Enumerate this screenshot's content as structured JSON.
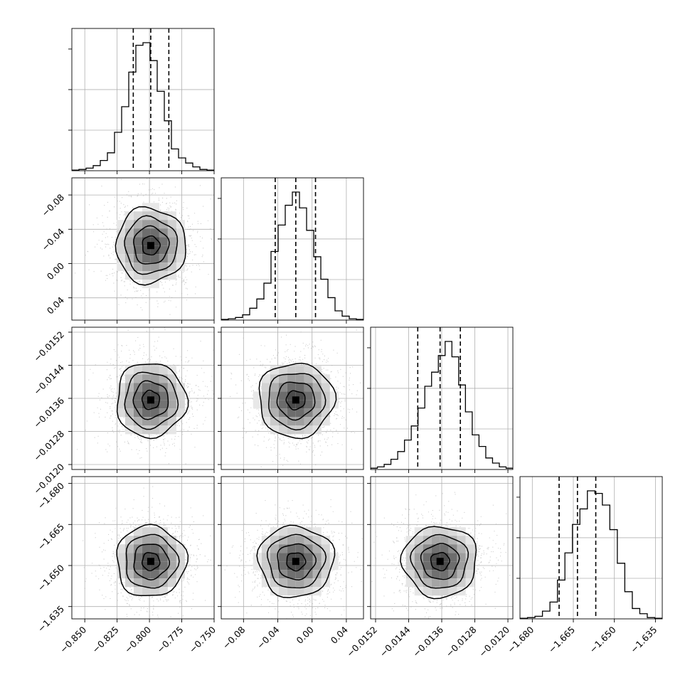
{
  "chart_data": {
    "type": "corner",
    "parameters": [
      {
        "range": [
          -0.86,
          -0.75
        ],
        "ticks": [
          -0.85,
          -0.825,
          -0.8,
          -0.775,
          -0.75
        ],
        "tick_labels": [
          "−0.850",
          "−0.825",
          "−0.800",
          "−0.775",
          "−0.750"
        ],
        "quantiles": [
          -0.8125,
          -0.799,
          -0.785
        ],
        "mean": -0.799,
        "sd": 0.0135,
        "hist": [
          0.5,
          1,
          2,
          4,
          8,
          14,
          30,
          50,
          77,
          98,
          100,
          86,
          62,
          39,
          17,
          10,
          6,
          3,
          1,
          0.5
        ]
      },
      {
        "range": [
          -0.106,
          0.06
        ],
        "ticks": [
          -0.08,
          -0.04,
          0.0,
          0.04
        ],
        "tick_labels": [
          "−0.08",
          "−0.04",
          "0.00",
          "0.04"
        ],
        "quantiles": [
          -0.043,
          -0.019,
          0.004
        ],
        "mean": -0.019,
        "sd": 0.022,
        "hist": [
          0.5,
          1,
          2,
          4,
          9,
          16,
          28,
          52,
          72,
          87,
          97,
          85,
          68,
          48,
          31,
          17,
          7,
          3,
          1,
          0.5
        ]
      },
      {
        "range": [
          -0.01532,
          -0.01188
        ],
        "ticks": [
          -0.0152,
          -0.0144,
          -0.0136,
          -0.0128,
          -0.012
        ],
        "tick_labels": [
          "−0.0152",
          "−0.0144",
          "−0.0136",
          "−0.0128",
          "−0.0120"
        ],
        "quantiles": [
          -0.01418,
          -0.01364,
          -0.01315
        ],
        "mean": -0.01364,
        "sd": 0.00045,
        "hist": [
          1,
          2,
          4,
          8,
          14,
          23,
          34,
          48,
          65,
          76,
          89,
          100,
          88,
          66,
          45,
          27,
          18,
          9,
          5,
          2,
          1
        ]
      },
      {
        "range": [
          -1.6845,
          -1.6325
        ],
        "ticks": [
          -1.68,
          -1.665,
          -1.65,
          -1.635
        ],
        "tick_labels": [
          "−1.680",
          "−1.665",
          "−1.650",
          "−1.635"
        ],
        "quantiles": [
          -1.6702,
          -1.6635,
          -1.6568
        ],
        "mean": -1.6635,
        "sd": 0.0065,
        "hist": [
          0.5,
          1,
          2,
          6,
          13,
          30,
          51,
          73,
          85,
          99,
          97,
          88,
          69,
          43,
          21,
          8,
          4,
          1,
          0.5
        ]
      }
    ],
    "left_axis_labels": [
      [],
      [
        "0.04",
        "0.00",
        "−0.04",
        "−0.08"
      ],
      [
        "−0.0120",
        "−0.0128",
        "−0.0136",
        "−0.0144",
        "−0.0152"
      ],
      [
        "−1.635",
        "−1.650",
        "−1.665",
        "−1.680"
      ]
    ],
    "contour_levels": 4,
    "grid": true
  },
  "colors": {
    "line": "#000000",
    "grid": "#b0b0b0",
    "points": "#a8a8a8",
    "shade_dark": "#000000"
  }
}
